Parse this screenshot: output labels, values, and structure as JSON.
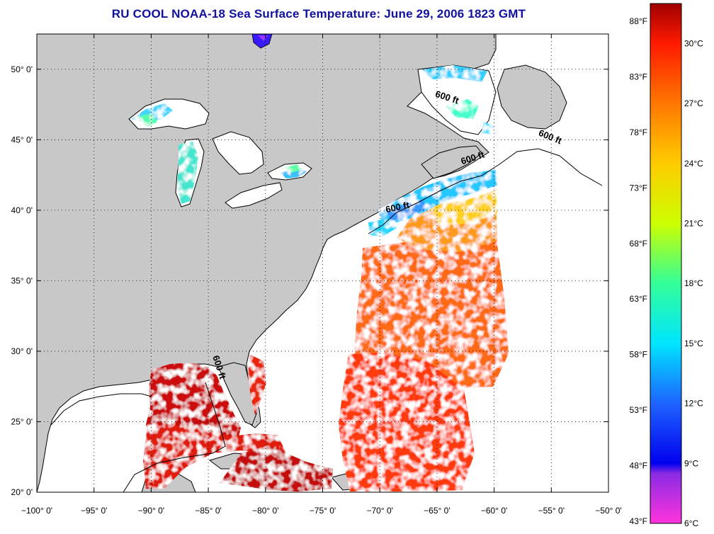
{
  "title": "RU COOL  NOAA-18  Sea Surface Temperature:  June 29, 2006 1823 GMT",
  "colors": {
    "land": "#c8c8c8",
    "ocean_nodata": "#ffffff",
    "coastline": "#000000"
  },
  "map": {
    "projection": "equirectangular",
    "lon_range": [
      -100,
      -50
    ],
    "lat_range": [
      20,
      52.5
    ],
    "grid": true,
    "lon_ticks": [
      {
        "value": -100,
        "label": "−100° 0'"
      },
      {
        "value": -95,
        "label": "−95° 0'"
      },
      {
        "value": -90,
        "label": "−90° 0'"
      },
      {
        "value": -85,
        "label": "−85° 0'"
      },
      {
        "value": -80,
        "label": "−80° 0'"
      },
      {
        "value": -75,
        "label": "−75° 0'"
      },
      {
        "value": -70,
        "label": "−70° 0'"
      },
      {
        "value": -65,
        "label": "−65° 0'"
      },
      {
        "value": -60,
        "label": "−60° 0'"
      },
      {
        "value": -55,
        "label": "−55° 0'"
      },
      {
        "value": -50,
        "label": "−50° 0'"
      }
    ],
    "lat_ticks": [
      {
        "value": 20,
        "label": "20° 0'"
      },
      {
        "value": 25,
        "label": "25° 0'"
      },
      {
        "value": 30,
        "label": "30° 0'"
      },
      {
        "value": 35,
        "label": "35° 0'"
      },
      {
        "value": 40,
        "label": "40° 0'"
      },
      {
        "value": 45,
        "label": "45° 0'"
      },
      {
        "value": 50,
        "label": "50° 0'"
      }
    ],
    "contour_labels": [
      {
        "text": "600 ft",
        "lon": -64.2,
        "lat": 47.8,
        "angle": 18
      },
      {
        "text": "600 ft",
        "lon": -55.2,
        "lat": 45.0,
        "angle": 22
      },
      {
        "text": "600 ft",
        "lon": -61.8,
        "lat": 43.5,
        "angle": -18
      },
      {
        "text": "600 ft",
        "lon": -68.4,
        "lat": 40.0,
        "angle": -12
      },
      {
        "text": "600 ft",
        "lon": -84.3,
        "lat": 28.8,
        "angle": 72
      }
    ]
  },
  "colorbar": {
    "celsius_range": [
      6,
      32
    ],
    "fahrenheit": [
      {
        "value": 43,
        "label": "43°F"
      },
      {
        "value": 48,
        "label": "48°F"
      },
      {
        "value": 53,
        "label": "53°F"
      },
      {
        "value": 58,
        "label": "58°F"
      },
      {
        "value": 63,
        "label": "63°F"
      },
      {
        "value": 68,
        "label": "68°F"
      },
      {
        "value": 73,
        "label": "73°F"
      },
      {
        "value": 78,
        "label": "78°F"
      },
      {
        "value": 83,
        "label": "83°F"
      },
      {
        "value": 88,
        "label": "88°F"
      }
    ],
    "celsius": [
      {
        "value": 6,
        "label": "6°C"
      },
      {
        "value": 9,
        "label": "9°C"
      },
      {
        "value": 12,
        "label": "12°C"
      },
      {
        "value": 15,
        "label": "15°C"
      },
      {
        "value": 18,
        "label": "18°C"
      },
      {
        "value": 21,
        "label": "21°C"
      },
      {
        "value": 24,
        "label": "24°C"
      },
      {
        "value": 27,
        "label": "27°C"
      },
      {
        "value": 30,
        "label": "30°C"
      }
    ],
    "stops": [
      {
        "c": 6,
        "color": "#ff33dd"
      },
      {
        "c": 8.5,
        "color": "#8a2be2"
      },
      {
        "c": 9,
        "color": "#0000ee"
      },
      {
        "c": 12,
        "color": "#1e64ff"
      },
      {
        "c": 15,
        "color": "#00e5ff"
      },
      {
        "c": 18,
        "color": "#33ff99"
      },
      {
        "c": 21,
        "color": "#ccff00"
      },
      {
        "c": 24,
        "color": "#ffcc00"
      },
      {
        "c": 27,
        "color": "#ff7700"
      },
      {
        "c": 30,
        "color": "#ff1a00"
      },
      {
        "c": 32,
        "color": "#a00000"
      }
    ]
  }
}
